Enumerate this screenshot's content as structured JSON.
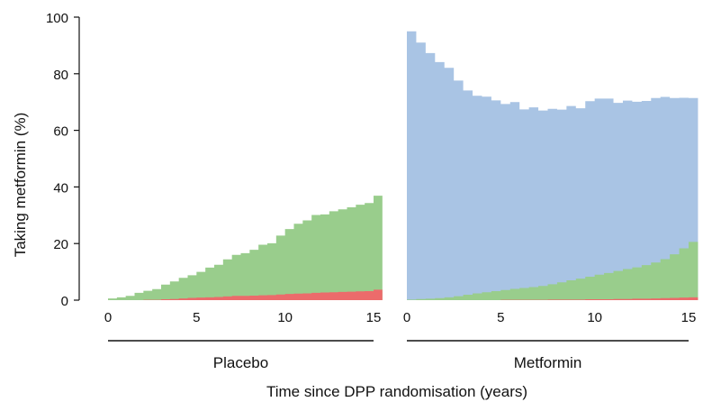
{
  "chart_data": {
    "type": "area",
    "ylabel": "Taking metformin (%)",
    "xlabel": "Time since DPP randomisation (years)",
    "ylim": [
      0,
      100
    ],
    "yticks": [
      "0",
      "20",
      "40",
      "60",
      "80",
      "100"
    ],
    "legend": "none",
    "grid": false,
    "colors": {
      "blue": "#a9c4e4",
      "green": "#99cd8c",
      "red": "#ec6b6b"
    },
    "panels": [
      {
        "name": "Placebo",
        "xlim": [
          0,
          15
        ],
        "xticks": [
          "0",
          "5",
          "10",
          "15"
        ],
        "step": 0.5,
        "series": [
          {
            "color_key": "green",
            "values": [
              0.6,
              1,
              1.5,
              2.6,
              3.3,
              3.9,
              5.5,
              6.6,
              7.9,
              8.8,
              10,
              11.5,
              12.5,
              14.4,
              16,
              16.6,
              17.8,
              19.6,
              20.1,
              22.8,
              25.1,
              27,
              28.2,
              30.1,
              30.3,
              31.4,
              32.1,
              32.8,
              33.7,
              34.3,
              36.9
            ]
          },
          {
            "color_key": "red",
            "values": [
              0,
              0,
              0,
              0,
              0.1,
              0.1,
              0.3,
              0.4,
              0.6,
              0.8,
              0.9,
              1,
              1.1,
              1.3,
              1.5,
              1.5,
              1.6,
              1.7,
              1.8,
              2,
              2.2,
              2.3,
              2.4,
              2.6,
              2.7,
              2.8,
              2.9,
              3,
              3.1,
              3.2,
              3.7
            ]
          }
        ]
      },
      {
        "name": "Metformin",
        "xlim": [
          0,
          15
        ],
        "xticks": [
          "0",
          "5",
          "10",
          "15"
        ],
        "step": 0.5,
        "series": [
          {
            "color_key": "blue",
            "values": [
              95,
              91,
              87.3,
              84.1,
              82.1,
              77.6,
              74.1,
              72.2,
              71.9,
              70.6,
              69.3,
              70,
              67.4,
              68.1,
              67,
              67.6,
              67.3,
              68.6,
              67.8,
              70.3,
              71.2,
              71.2,
              69.7,
              70.5,
              70.1,
              70.4,
              71.4,
              71.8,
              71.4,
              71.5,
              71.4
            ]
          },
          {
            "color_key": "green",
            "values": [
              0.2,
              0.4,
              0.5,
              0.7,
              1,
              1.4,
              1.9,
              2.4,
              2.8,
              3.2,
              3.6,
              4,
              4.3,
              4.6,
              5,
              5.6,
              6.3,
              7,
              7.6,
              8.3,
              9,
              9.6,
              10.3,
              11,
              11.6,
              12.4,
              13.3,
              14.5,
              16.2,
              18.3,
              20.6
            ]
          },
          {
            "color_key": "red",
            "values": [
              0,
              0,
              0,
              0,
              0,
              0,
              0,
              0,
              0,
              0,
              0.1,
              0.1,
              0.1,
              0.1,
              0.1,
              0.2,
              0.2,
              0.2,
              0.2,
              0.3,
              0.3,
              0.3,
              0.4,
              0.4,
              0.5,
              0.5,
              0.6,
              0.7,
              0.8,
              0.9,
              1
            ]
          }
        ]
      }
    ]
  }
}
